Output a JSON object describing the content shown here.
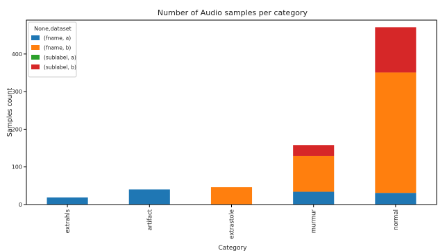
{
  "chart_data": {
    "type": "bar",
    "stacked": true,
    "title": "Number of Audio samples per category",
    "xlabel": "Category",
    "ylabel": "Samples count",
    "categories": [
      "extrahls",
      "artifact",
      "extrastole",
      "murmur",
      "normal"
    ],
    "ylim": [
      0,
      490
    ],
    "yticks": [
      0,
      100,
      200,
      300,
      400
    ],
    "grid": false,
    "legend": {
      "title": "None,dataset",
      "position": "top-left"
    },
    "series": [
      {
        "name": "(fname, a)",
        "color": "#1f77b4",
        "values": [
          19,
          40,
          0,
          34,
          31
        ]
      },
      {
        "name": "(fname, b)",
        "color": "#ff7f0e",
        "values": [
          0,
          0,
          46,
          95,
          320
        ]
      },
      {
        "name": "(sublabel, a)",
        "color": "#2ca02c",
        "values": [
          0,
          0,
          0,
          0,
          0
        ]
      },
      {
        "name": "(sublabel, b)",
        "color": "#d62728",
        "values": [
          0,
          0,
          0,
          29,
          120
        ]
      }
    ]
  }
}
